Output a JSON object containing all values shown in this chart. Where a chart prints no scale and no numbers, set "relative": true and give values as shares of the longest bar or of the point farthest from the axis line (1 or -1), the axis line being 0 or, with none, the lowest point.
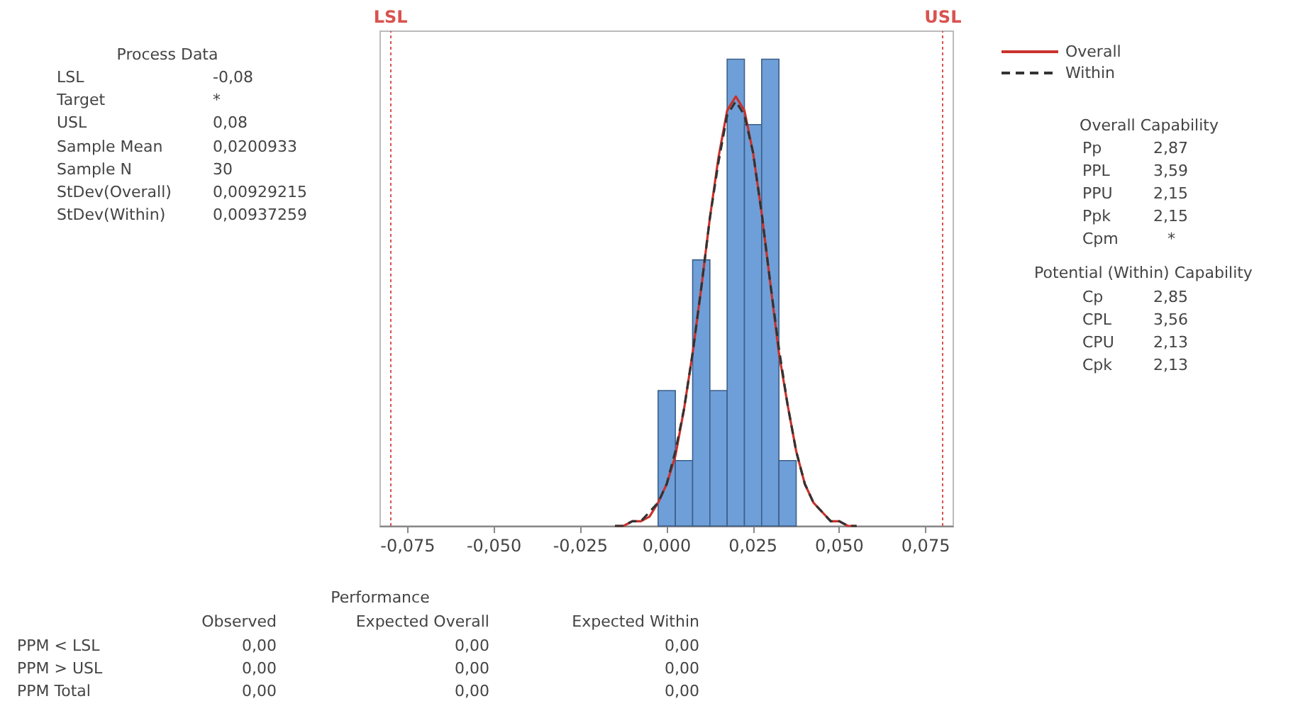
{
  "chart_data": {
    "type": "histogram",
    "relative": true,
    "bins": [
      -0.0025,
      0.0025,
      0.0075,
      0.0125,
      0.0175,
      0.0225,
      0.0275,
      0.0325,
      0.0375
    ],
    "values": [
      0.29,
      0.14,
      0.57,
      0.29,
      1,
      0.86,
      1,
      0.14
    ],
    "color": "#6f9fd8",
    "series": [
      {
        "name": "Overall",
        "type": "line",
        "color": "#c8332c",
        "line_style": "solid",
        "x": [
          -0.015,
          -0.0125,
          -0.01,
          -0.0075,
          -0.005,
          -0.0025,
          0,
          0.0025,
          0.005,
          0.0075,
          0.01,
          0.0125,
          0.015,
          0.0175,
          0.02,
          0.0225,
          0.025,
          0.0275,
          0.03,
          0.0325,
          0.035,
          0.0375,
          0.04,
          0.0425,
          0.045,
          0.0475,
          0.05,
          0.0525,
          0.055
        ],
        "values": [
          0,
          0,
          0.01,
          0.01,
          0.02,
          0.05,
          0.09,
          0.15,
          0.25,
          0.37,
          0.51,
          0.66,
          0.79,
          0.89,
          0.92,
          0.89,
          0.8,
          0.67,
          0.52,
          0.37,
          0.26,
          0.16,
          0.09,
          0.05,
          0.03,
          0.01,
          0.01,
          0,
          0
        ]
      },
      {
        "name": "Within",
        "type": "line",
        "color": "#333333",
        "line_style": "dashed",
        "x": [
          -0.015,
          -0.0125,
          -0.01,
          -0.0075,
          -0.005,
          -0.0025,
          0,
          0.0025,
          0.005,
          0.0075,
          0.01,
          0.0125,
          0.015,
          0.0175,
          0.02,
          0.0225,
          0.025,
          0.0275,
          0.03,
          0.0325,
          0.035,
          0.0375,
          0.04,
          0.0425,
          0.045,
          0.0475,
          0.05,
          0.0525,
          0.055
        ],
        "values": [
          0,
          0,
          0.01,
          0.01,
          0.03,
          0.05,
          0.09,
          0.16,
          0.25,
          0.37,
          0.51,
          0.66,
          0.78,
          0.88,
          0.91,
          0.88,
          0.8,
          0.67,
          0.52,
          0.38,
          0.26,
          0.16,
          0.09,
          0.05,
          0.03,
          0.01,
          0.01,
          0,
          0
        ]
      }
    ],
    "xlim": [
      -0.083,
      0.083
    ],
    "xticks": [
      {
        "value": -0.075,
        "label": "-0,075"
      },
      {
        "value": -0.05,
        "label": "-0,050"
      },
      {
        "value": -0.025,
        "label": "-0,025"
      },
      {
        "value": 0,
        "label": "0,000"
      },
      {
        "value": 0.025,
        "label": "0,025"
      },
      {
        "value": 0.05,
        "label": "0,050"
      },
      {
        "value": 0.075,
        "label": "0,075"
      }
    ],
    "ref_lines": [
      {
        "axis": "x",
        "value": -0.08,
        "label": "LSL",
        "color": "#d9534f",
        "line_style": "dotted"
      },
      {
        "axis": "x",
        "value": 0.08,
        "label": "USL",
        "color": "#d9534f",
        "line_style": "dotted"
      }
    ],
    "legend": "top right",
    "annotations": [
      "Process Data",
      "LSL",
      "-0,08",
      "Target",
      "*",
      "USL",
      "0,08",
      "Sample Mean",
      "0,0200933",
      "Sample N",
      "30",
      "StDev(Overall)",
      "0,00929215",
      "StDev(Within)",
      "0,00937259",
      "Overall Capability",
      "Pp",
      "2,87",
      "PPL",
      "3,59",
      "PPU",
      "2,15",
      "Ppk",
      "2,15",
      "Cpm",
      "*",
      "Potential (Within) Capability",
      "Cp",
      "2,85",
      "CPL",
      "3,56",
      "CPU",
      "2,13",
      "Cpk",
      "2,13",
      "Performance",
      "Observed",
      "Expected Overall",
      "Expected Within",
      "PPM < LSL",
      "0,00",
      "0,00",
      "0,00",
      "PPM > USL",
      "0,00",
      "0,00",
      "0,00",
      "PPM Total",
      "0,00",
      "0,00",
      "0,00"
    ]
  }
}
